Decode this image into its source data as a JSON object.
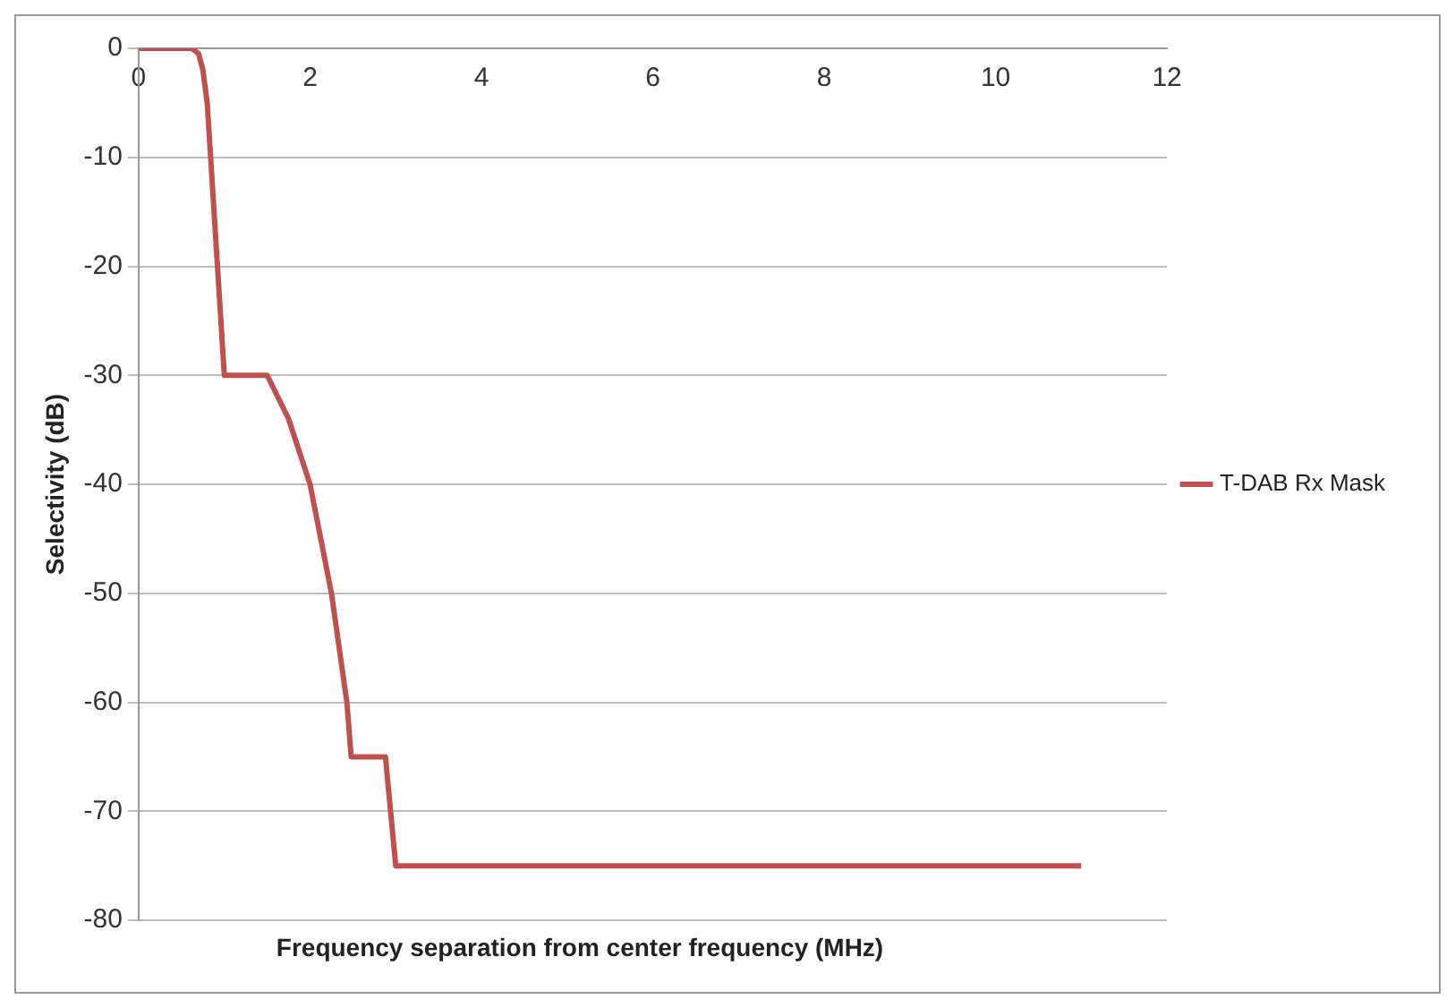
{
  "chart_data": {
    "type": "line",
    "xlabel": "Frequency separation from center frequency (MHz)",
    "ylabel": "Selectivity (dB)",
    "xlim": [
      0,
      12
    ],
    "xticks": [
      0,
      2,
      4,
      6,
      8,
      10,
      12
    ],
    "ylim": [
      -80,
      0
    ],
    "yticks": [
      -80,
      -70,
      -60,
      -50,
      -40,
      -30,
      -20,
      -10,
      0
    ],
    "grid": "y",
    "legend": "right",
    "marker": "none",
    "line_style": "solid",
    "series": [
      {
        "name": "T-DAB Rx Mask",
        "color": "#c0504d",
        "x": [
          0,
          0.62,
          0.7,
          0.75,
          0.8,
          1.0,
          1.5,
          1.75,
          2.0,
          2.1,
          2.25,
          2.43,
          2.48,
          2.88,
          3.0,
          11
        ],
        "values": [
          0,
          0,
          -0.5,
          -2,
          -5,
          -30,
          -30,
          -34,
          -40,
          -44,
          -50,
          -60,
          -65,
          -65,
          -75,
          -75
        ]
      }
    ]
  }
}
